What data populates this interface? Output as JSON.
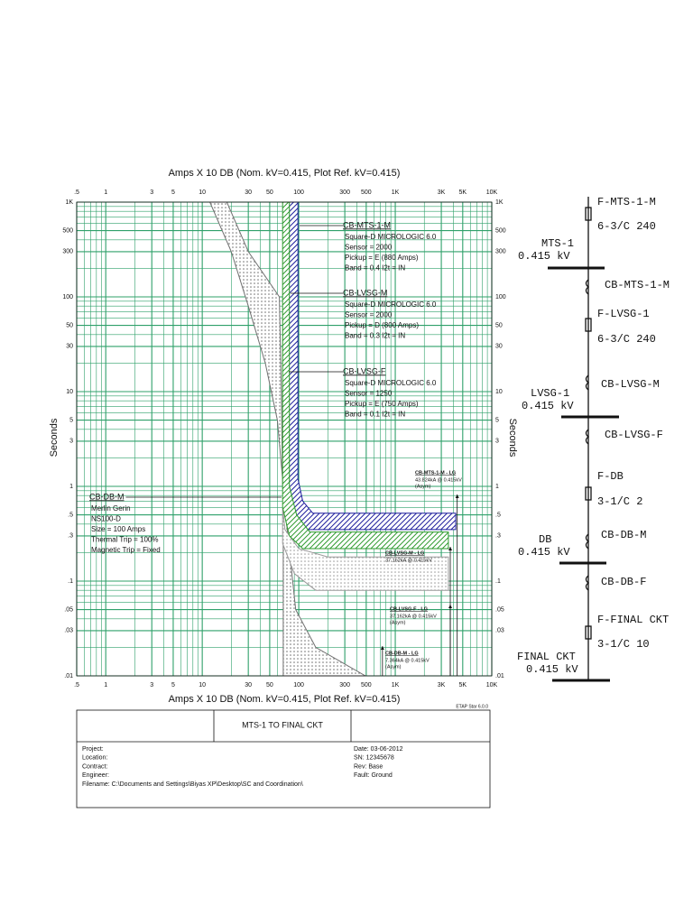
{
  "chart_data": {
    "type": "band",
    "x_axis_label": "Amps X 10  DB (Nom. kV=0.415, Plot Ref. kV=0.415)",
    "y_axis_label": "Seconds",
    "log_x": true,
    "log_y": true,
    "grid": true,
    "grid_color": "#2fa06a",
    "xlim": [
      0.5,
      10000
    ],
    "ylim": [
      0.01,
      1000
    ],
    "xticks": [
      {
        "value": 0.5,
        "label": ".5"
      },
      1,
      3,
      5,
      10,
      30,
      50,
      100,
      300,
      500,
      {
        "value": 1000,
        "label": "1K"
      },
      {
        "value": 3000,
        "label": "3K"
      },
      {
        "value": 5000,
        "label": "5K"
      },
      {
        "value": 10000,
        "label": "10K"
      }
    ],
    "yticks": [
      {
        "value": 0.01,
        "label": ".01"
      },
      {
        "value": 0.03,
        "label": ".03"
      },
      {
        "value": 0.05,
        "label": ".05"
      },
      {
        "value": 0.1,
        "label": ".1"
      },
      {
        "value": 0.3,
        "label": ".3"
      },
      {
        "value": 0.5,
        "label": ".5"
      },
      1,
      3,
      5,
      10,
      30,
      50,
      100,
      300,
      500,
      {
        "value": 1000,
        "label": "1K"
      }
    ],
    "series": [
      {
        "name": "CB-DB-M",
        "color": "#707070",
        "pattern": "dots",
        "x": [
          12,
          18,
          30,
          63,
          66,
          68,
          93,
          150,
          490,
          69,
          69,
          60,
          45,
          30,
          20
        ],
        "values": [
          1000,
          1000,
          300,
          100,
          10,
          1,
          0.05,
          0.02,
          0.01,
          0.01,
          1,
          5,
          20,
          80,
          300
        ]
      },
      {
        "name": "CB-LVSG-F",
        "color": "#9a9a9a",
        "pattern": "dots",
        "x": [
          68,
          72,
          100,
          200,
          3550,
          3550,
          150,
          90,
          68
        ],
        "values": [
          0.6,
          0.35,
          0.22,
          0.18,
          0.18,
          0.08,
          0.08,
          0.12,
          0.25
        ]
      },
      {
        "name": "CB-MTS-1-M",
        "color": "#1c1c9c",
        "pattern": "hatch",
        "x": [
          76,
          98,
          98,
          110,
          140,
          4230,
          4230,
          120,
          90,
          76
        ],
        "values": [
          1000,
          1000,
          1.2,
          0.7,
          0.52,
          0.52,
          0.35,
          0.35,
          0.45,
          0.8
        ]
      },
      {
        "name": "CB-LVSG-M",
        "color": "#2e9a2e",
        "pattern": "hatch",
        "x": [
          68,
          80,
          80,
          95,
          130,
          3550,
          3550,
          110,
          80,
          68
        ],
        "values": [
          1000,
          1000,
          1.0,
          0.5,
          0.33,
          0.33,
          0.22,
          0.22,
          0.3,
          0.6
        ]
      }
    ],
    "device_labels": [
      {
        "title": "CB-MTS-1-M",
        "lines": [
          "Square-D  MICROLOGIC 6.0",
          "Sensor = 2000",
          "Pickup = E (880 Amps)",
          "Band = 0.4  I2t = IN"
        ]
      },
      {
        "title": "CB-LVSG-M",
        "lines": [
          "Square-D  MICROLOGIC 6.0",
          "Sensor = 2000",
          "Pickup = D (800 Amps)",
          "Band = 0.3  I2t = IN"
        ]
      },
      {
        "title": "CB-LVSG-F",
        "lines": [
          "Square-D  MICROLOGIC 6.0",
          "Sensor = 1250",
          "Pickup = E (750 Amps)",
          "Band = 0.1  I2t = IN"
        ]
      },
      {
        "title": "CB-DB-M",
        "lines": [
          "Merlin Gerin",
          "NS100-D",
          "Size = 100 Amps",
          "Thermal Trip = 100%",
          "Magnetic Trip = Fixed"
        ]
      }
    ],
    "fault_labels": [
      {
        "title": "CB-MTS-1-M - LG",
        "lines": [
          "43.824kA @ 0.415kV",
          "(Asym)"
        ],
        "x": 4382.4
      },
      {
        "title": "CB-LVSG-M - LG",
        "lines": [
          "37.162kA @ 0.415kV"
        ],
        "x": 3716.2
      },
      {
        "title": "CB-LVSG-F - LG",
        "lines": [
          "37.162kA @ 0.415kV",
          "(Asym)"
        ],
        "x": 3716.2
      },
      {
        "title": "CB-DB-M - LG",
        "lines": [
          "7.364kA @ 0.415kV",
          "(Asym)"
        ],
        "x": 736.4
      }
    ]
  },
  "diagram": {
    "labels": [
      "F-MTS-1-M",
      "6-3/C 240",
      "MTS-1",
      "0.415 kV",
      "CB-MTS-1-M",
      "F-LVSG-1",
      "6-3/C 240",
      "LVSG-1",
      "0.415 kV",
      "CB-LVSG-M",
      "CB-LVSG-F",
      "F-DB",
      "3-1/C 2",
      "DB",
      "0.415 kV",
      "CB-DB-M",
      "CB-DB-F",
      "F-FINAL CKT",
      "3-1/C 10",
      "FINAL CKT",
      "0.415 kV"
    ]
  },
  "title_block": {
    "software": "ETAP Star 6.0.0",
    "title": "MTS-1 TO FINAL CKT",
    "left": [
      "Project:",
      "Location:",
      "Contract:",
      "Engineer:",
      "Filename: C:\\Documents and Settings\\Biyas XP\\Desktop\\SC and Coordination\\"
    ],
    "right": [
      "Date: 03-06-2012",
      "SN:     12345678",
      "Rev:    Base",
      "Fault: Ground"
    ]
  }
}
